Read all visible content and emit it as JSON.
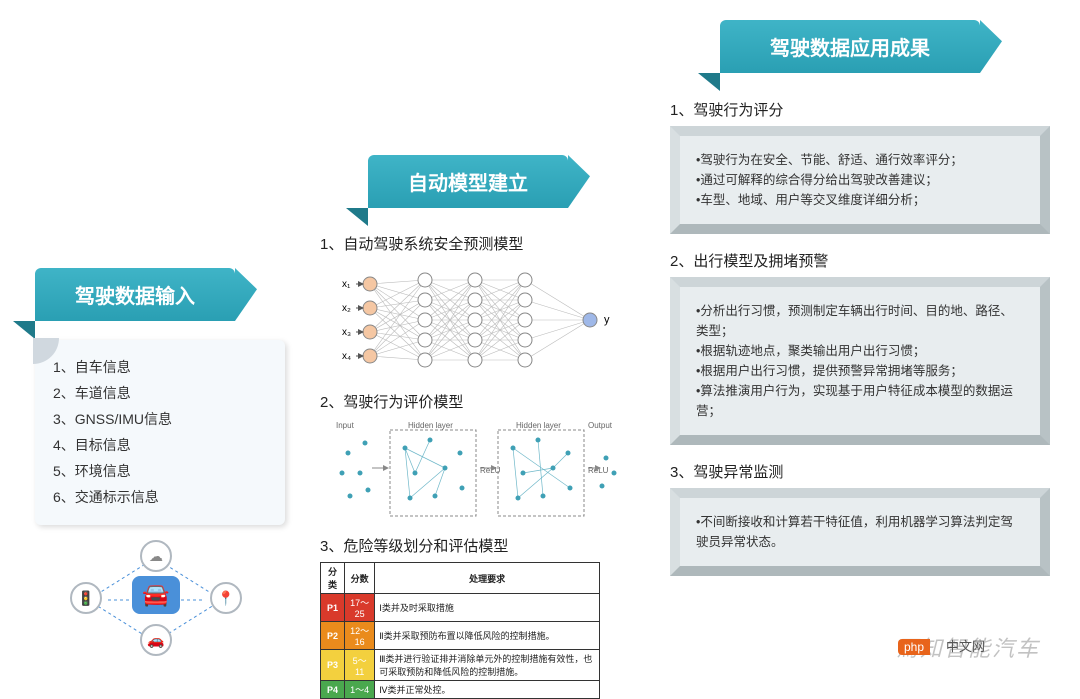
{
  "colors": {
    "header_bg": "#2fa8bc",
    "header_fold": "#1f7a8a",
    "infobox_bg": "#f5f9fc",
    "bevel_bg": "#e8edef",
    "nn_input": "#f5c7a3",
    "nn_hidden": "#ffffff",
    "nn_output": "#9fb8e8",
    "nn_border": "#888888",
    "nn_link": "#bbbbbb",
    "risk_p1": "#d93a2b",
    "risk_p2": "#ea8b1c",
    "risk_p3": "#f3d03e",
    "risk_p4": "#4aa84e"
  },
  "stage1": {
    "title": "驾驶数据输入",
    "items": [
      "1、自车信息",
      "2、车道信息",
      "3、GNSS/IMU信息",
      "4、目标信息",
      "5、环境信息",
      "6、交通标示信息"
    ],
    "icons": [
      "cloud",
      "traffic-light",
      "car",
      "pin",
      "car2"
    ]
  },
  "stage2": {
    "title": "自动模型建立",
    "sub1": "1、自动驾驶系统安全预测模型",
    "sub2": "2、驾驶行为评价模型",
    "sub3": "3、危险等级划分和评估模型",
    "nn": {
      "inputs": [
        "x₁",
        "x₂",
        "x₃",
        "x₄"
      ],
      "output_label": "y",
      "layers": [
        4,
        5,
        5,
        5,
        1
      ]
    },
    "eval_labels": {
      "input": "Input",
      "hidden": "Hidden layer",
      "relu": "ReLU",
      "output": "Output"
    },
    "risk_table": {
      "headers": [
        "分类",
        "分数",
        "处理要求"
      ],
      "rows": [
        {
          "color": "#d93a2b",
          "cls": "P1",
          "score": "17～25",
          "req": "Ⅰ类并及时采取措施"
        },
        {
          "color": "#ea8b1c",
          "cls": "P2",
          "score": "12～16",
          "req": "Ⅱ类并采取预防布置以降低风险的控制措施。"
        },
        {
          "color": "#f3d03e",
          "cls": "P3",
          "score": "5～11",
          "req": "Ⅲ类并进行验证排并消除单元外的控制措施有效性，也可采取预防和降低风险的控制措施。"
        },
        {
          "color": "#4aa84e",
          "cls": "P4",
          "score": "1～4",
          "req": "Ⅳ类并正常处控。"
        }
      ]
    }
  },
  "stage3": {
    "title": "驾驶数据应用成果",
    "sections": [
      {
        "heading": "1、驾驶行为评分",
        "lines": [
          "•驾驶行为在安全、节能、舒适、通行效率评分；",
          "•通过可解释的综合得分给出驾驶改善建议；",
          "•车型、地域、用户等交叉维度详细分析；"
        ]
      },
      {
        "heading": "2、出行模型及拥堵预警",
        "lines": [
          "•分析出行习惯，预测制定车辆出行时间、目的地、路径、类型；",
          "•根据轨迹地点，聚类输出用户出行习惯；",
          "•根据用户出行习惯，提供预警异常拥堵等服务；",
          "•算法推演用户行为，实现基于用户特征成本模型的数据运营；"
        ]
      },
      {
        "heading": "3、驾驶异常监测",
        "lines": [
          "•不间断接收和计算若干特征值，利用机器学习算法判定驾驶员异常状态。"
        ]
      }
    ]
  },
  "watermark": "焉知智能汽车",
  "badge": "php",
  "badge_text": "中文网"
}
